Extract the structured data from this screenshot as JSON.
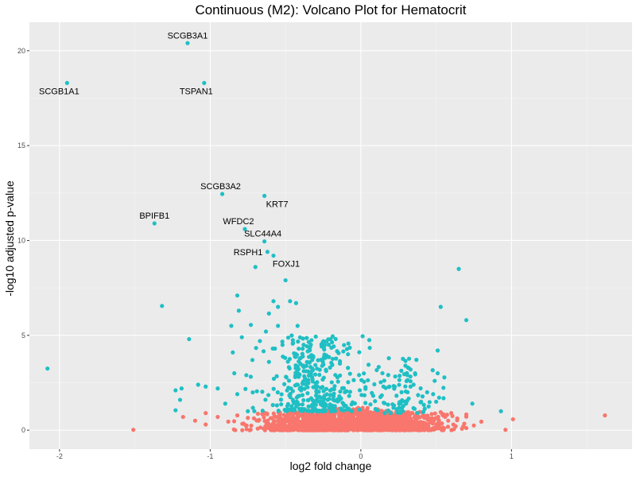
{
  "chart_data": {
    "type": "scatter",
    "title": "Continuous (M2): Volcano Plot for Hematocrit",
    "xlabel": "log2 fold change",
    "ylabel": "-log10 adjusted p-value",
    "xlim": [
      -2.2,
      1.8
    ],
    "ylim": [
      -1.0,
      21.5
    ],
    "x_ticks": [
      -2,
      -1,
      0,
      1
    ],
    "x_tick_labels": [
      "-2",
      "-1",
      "0",
      "1"
    ],
    "y_ticks": [
      0,
      5,
      10,
      15,
      20
    ],
    "y_tick_labels": [
      "0",
      "5",
      "10",
      "15",
      "20"
    ],
    "grid": true,
    "legend": "none",
    "colors": {
      "panel_bg": "#ebebeb",
      "grid_major": "#ffffff",
      "significant": "#1fbfc4",
      "not_significant": "#f8766d"
    },
    "series": [
      {
        "key": "significant",
        "color": "#1fbfc4",
        "points": [
          [
            -1.15,
            20.4
          ],
          [
            -1.95,
            18.3
          ],
          [
            -1.04,
            18.3
          ],
          [
            -0.92,
            12.45
          ],
          [
            -0.64,
            12.35
          ],
          [
            -1.37,
            10.9
          ],
          [
            -0.77,
            10.6
          ],
          [
            -0.64,
            9.95
          ],
          [
            -0.62,
            9.4
          ],
          [
            -0.58,
            9.2
          ],
          [
            -0.7,
            8.6
          ],
          [
            -0.5,
            7.9
          ],
          [
            -0.82,
            7.1
          ],
          [
            -0.58,
            6.8
          ],
          [
            -0.47,
            6.8
          ],
          [
            -0.43,
            6.7
          ],
          [
            -0.55,
            6.5
          ],
          [
            -0.81,
            6.3
          ],
          [
            -1.32,
            6.55
          ],
          [
            -0.61,
            6.15
          ],
          [
            -0.86,
            5.5
          ],
          [
            -0.73,
            5.55
          ],
          [
            -0.55,
            5.5
          ],
          [
            -0.42,
            5.5
          ],
          [
            -0.63,
            5.2
          ],
          [
            -1.14,
            4.8
          ],
          [
            -0.79,
            4.9
          ],
          [
            -0.67,
            4.7
          ],
          [
            -0.52,
            4.5
          ],
          [
            -0.45,
            4.6
          ],
          [
            -0.38,
            4.5
          ],
          [
            -0.85,
            4.1
          ],
          [
            -0.57,
            4.3
          ],
          [
            -0.4,
            3.8
          ],
          [
            -0.72,
            3.7
          ],
          [
            -0.61,
            3.6
          ],
          [
            -2.08,
            3.25
          ],
          [
            -0.84,
            3.0
          ],
          [
            -0.76,
            2.9
          ],
          [
            -1.08,
            2.4
          ],
          [
            -1.03,
            2.3
          ],
          [
            -0.95,
            2.2
          ],
          [
            -0.82,
            1.9
          ],
          [
            -1.19,
            2.2
          ],
          [
            -1.23,
            2.1
          ],
          [
            -0.69,
            2.05
          ],
          [
            -1.2,
            1.6
          ],
          [
            -1.23,
            1.05
          ],
          [
            -0.9,
            1.4
          ],
          [
            -0.75,
            1.0
          ],
          [
            0.65,
            8.5
          ],
          [
            0.53,
            6.5
          ],
          [
            0.7,
            5.8
          ],
          [
            0.51,
            4.2
          ],
          [
            0.33,
            3.2
          ],
          [
            0.36,
            3.0
          ],
          [
            0.51,
            3.0
          ],
          [
            0.35,
            2.4
          ],
          [
            0.33,
            2.3
          ],
          [
            0.49,
            2.6
          ],
          [
            0.27,
            2.0
          ],
          [
            0.38,
            1.85
          ],
          [
            0.48,
            1.9
          ],
          [
            0.44,
            2.0
          ],
          [
            0.15,
            2.3
          ],
          [
            0.13,
            1.75
          ],
          [
            0.4,
            1.5
          ],
          [
            0.5,
            1.5
          ],
          [
            0.74,
            1.4
          ],
          [
            0.93,
            1.0
          ],
          [
            0.18,
            1.35
          ],
          [
            0.3,
            1.4
          ],
          [
            0.22,
            1.3
          ],
          [
            0.45,
            1.25
          ]
        ]
      },
      {
        "key": "not_significant",
        "color": "#f8766d",
        "points": [
          [
            -1.51,
            0.02
          ],
          [
            -1.1,
            0.5
          ],
          [
            -1.18,
            0.7
          ],
          [
            -1.03,
            0.9
          ],
          [
            -1.03,
            0.3
          ],
          [
            -0.75,
            0.65
          ],
          [
            -0.82,
            0.78
          ],
          [
            -0.95,
            0.7
          ],
          [
            -0.68,
            0.5
          ],
          [
            -0.88,
            0.45
          ],
          [
            0.96,
            0.02
          ],
          [
            1.01,
            0.58
          ],
          [
            1.62,
            0.78
          ],
          [
            0.6,
            0.9
          ],
          [
            0.56,
            0.7
          ],
          [
            0.75,
            0.25
          ],
          [
            0.58,
            0.5
          ],
          [
            0.8,
            0.45
          ],
          [
            0.68,
            0.2
          ],
          [
            0.64,
            0.62
          ],
          [
            0.53,
            0.95
          ],
          [
            0.47,
            0.85
          ]
        ]
      }
    ],
    "clusters": [
      {
        "color": "#1fbfc4",
        "count": 360,
        "x_center": -0.3,
        "x_sd": 0.15,
        "y_base": 1.0,
        "y_span": 4.0
      },
      {
        "color": "#1fbfc4",
        "count": 90,
        "x_center": 0.25,
        "x_sd": 0.14,
        "y_base": 0.9,
        "y_span": 3.0
      },
      {
        "color": "#f8766d",
        "count": 950,
        "x_center": -0.25,
        "x_sd": 0.2,
        "y_base": 0.0,
        "y_span": 1.2
      },
      {
        "color": "#f8766d",
        "count": 700,
        "x_center": 0.2,
        "x_sd": 0.18,
        "y_base": 0.0,
        "y_span": 1.1
      }
    ],
    "annotations": [
      {
        "text": "SCGB3A1",
        "x": -1.15,
        "y": 20.4,
        "position": "above"
      },
      {
        "text": "SCGB1A1",
        "x": -1.95,
        "y": 18.3,
        "position": "below-left"
      },
      {
        "text": "TSPAN1",
        "x": -1.04,
        "y": 18.3,
        "position": "below-left"
      },
      {
        "text": "SCGB3A2",
        "x": -0.92,
        "y": 12.45,
        "position": "above-right"
      },
      {
        "text": "KRT7",
        "x": -0.64,
        "y": 12.35,
        "position": "below-right"
      },
      {
        "text": "BPIFB1",
        "x": -1.37,
        "y": 10.9,
        "position": "above"
      },
      {
        "text": "WFDC2",
        "x": -0.77,
        "y": 10.6,
        "position": "above-left"
      },
      {
        "text": "SLC44A4",
        "x": -0.64,
        "y": 9.95,
        "position": "above-right"
      },
      {
        "text": "RSPH1",
        "x": -0.62,
        "y": 9.4,
        "position": "left"
      },
      {
        "text": "FOXJ1",
        "x": -0.58,
        "y": 9.2,
        "position": "below-right"
      }
    ]
  }
}
